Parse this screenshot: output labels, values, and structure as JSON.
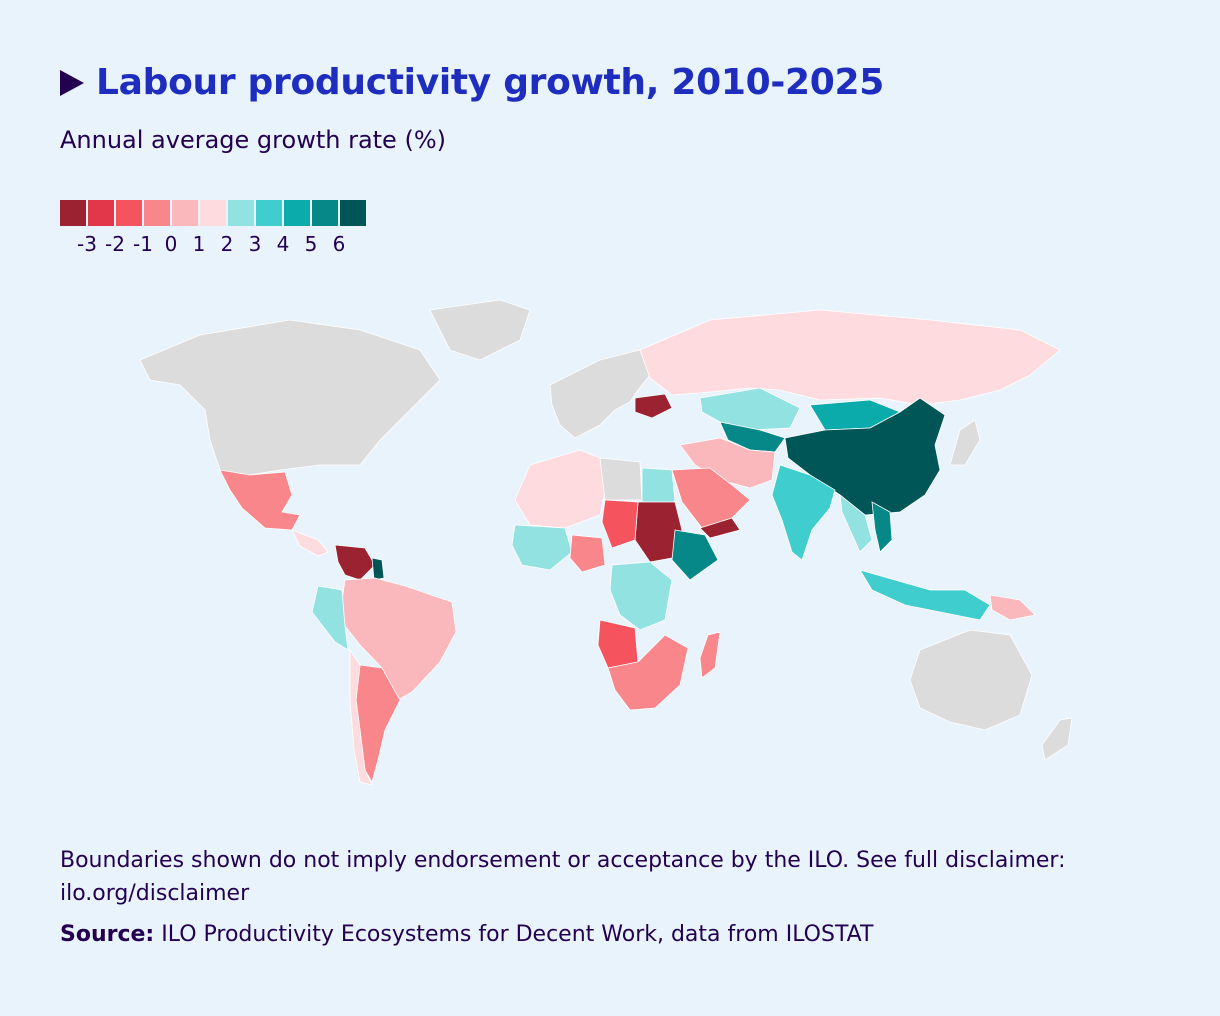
{
  "title": "Labour productivity growth, 2010-2025",
  "subtitle": "Annual average growth rate (%)",
  "legend": {
    "swatch_colors": [
      "#9b2230",
      "#e2374b",
      "#f5545f",
      "#f9868a",
      "#fbb8bc",
      "#fddbdf",
      "#93e2e2",
      "#40cdcd",
      "#0aabaa",
      "#078888",
      "#005656"
    ],
    "labels": [
      "-3",
      "-2",
      "-1",
      "0",
      "1",
      "2",
      "3",
      "4",
      "5",
      "6"
    ]
  },
  "map_colors": {
    "no_data": "#dcdcdc",
    "ocean": "#e8f3fc"
  },
  "regions": [
    {
      "name": "North America",
      "color": "#dcdcdc"
    },
    {
      "name": "Greenland",
      "color": "#dcdcdc"
    },
    {
      "name": "Mexico",
      "color": "#f9868a"
    },
    {
      "name": "Central America",
      "color": "#fddbdf"
    },
    {
      "name": "Venezuela",
      "color": "#9b2230"
    },
    {
      "name": "Guyana",
      "color": "#005656"
    },
    {
      "name": "Brazil",
      "color": "#fbb8bc"
    },
    {
      "name": "Peru",
      "color": "#93e2e2"
    },
    {
      "name": "Argentina",
      "color": "#f9868a"
    },
    {
      "name": "Chile",
      "color": "#fddbdf"
    },
    {
      "name": "Europe",
      "color": "#dcdcdc"
    },
    {
      "name": "Ukraine",
      "color": "#9b2230"
    },
    {
      "name": "Russia",
      "color": "#fddbdf"
    },
    {
      "name": "Kazakhstan",
      "color": "#93e2e2"
    },
    {
      "name": "Mongolia",
      "color": "#0aabaa"
    },
    {
      "name": "Central Asia",
      "color": "#078888"
    },
    {
      "name": "China",
      "color": "#005656"
    },
    {
      "name": "India",
      "color": "#40cdcd"
    },
    {
      "name": "Southeast Asia",
      "color": "#93e2e2"
    },
    {
      "name": "Viet Nam",
      "color": "#078888"
    },
    {
      "name": "Indonesia",
      "color": "#40cdcd"
    },
    {
      "name": "Papua New Guinea",
      "color": "#fbb8bc"
    },
    {
      "name": "Japan",
      "color": "#dcdcdc"
    },
    {
      "name": "Middle East",
      "color": "#fbb8bc"
    },
    {
      "name": "Saudi Arabia",
      "color": "#f9868a"
    },
    {
      "name": "Yemen",
      "color": "#9b2230"
    },
    {
      "name": "North Africa",
      "color": "#fddbdf"
    },
    {
      "name": "Libya",
      "color": "#dcdcdc"
    },
    {
      "name": "Egypt",
      "color": "#93e2e2"
    },
    {
      "name": "Sudan",
      "color": "#9b2230"
    },
    {
      "name": "Chad",
      "color": "#f5545f"
    },
    {
      "name": "Ethiopia",
      "color": "#078888"
    },
    {
      "name": "West Africa",
      "color": "#93e2e2"
    },
    {
      "name": "Nigeria",
      "color": "#f9868a"
    },
    {
      "name": "DR Congo",
      "color": "#93e2e2"
    },
    {
      "name": "Angola",
      "color": "#f5545f"
    },
    {
      "name": "Southern Africa",
      "color": "#f9868a"
    },
    {
      "name": "Madagascar",
      "color": "#f9868a"
    },
    {
      "name": "Australia",
      "color": "#dcdcdc"
    },
    {
      "name": "New Zealand",
      "color": "#dcdcdc"
    }
  ],
  "disclaimer": "Boundaries shown do not imply endorsement or acceptance by the ILO. See full disclaimer: ilo.org/disclaimer",
  "source": {
    "label": "Source:",
    "text": " ILO Productivity Ecosystems for Decent Work, data from ILOSTAT"
  }
}
